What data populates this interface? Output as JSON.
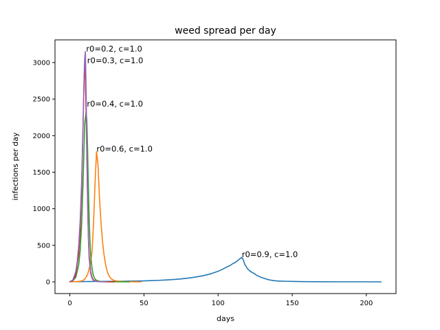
{
  "chart_data": {
    "type": "line",
    "title": "weed spread per day",
    "xlabel": "days",
    "ylabel": "infections per day",
    "xlim": [
      -10,
      220
    ],
    "ylim": [
      -160,
      3310
    ],
    "x_ticks": [
      0,
      50,
      100,
      150,
      200
    ],
    "y_ticks": [
      0,
      500,
      1000,
      1500,
      2000,
      2500,
      3000
    ],
    "grid": false,
    "legend": "none",
    "series": [
      {
        "color": "#1f77b4",
        "label": "r0=0.9, c=1.0",
        "label_anchor": [
          116,
          340
        ],
        "x": [
          0,
          5,
          10,
          15,
          20,
          25,
          30,
          35,
          40,
          45,
          50,
          55,
          60,
          65,
          70,
          75,
          80,
          85,
          90,
          95,
          100,
          103,
          106,
          108,
          110,
          112,
          114,
          115,
          116,
          117,
          118,
          120,
          122,
          124,
          126,
          128,
          130,
          132,
          134,
          136,
          138,
          140,
          145,
          150,
          155,
          160,
          170,
          180,
          190,
          200,
          210
        ],
        "y": [
          2,
          3,
          4,
          5,
          6,
          7,
          8,
          9,
          10,
          11,
          13,
          17,
          21,
          26,
          32,
          40,
          52,
          66,
          85,
          110,
          145,
          172,
          205,
          222,
          250,
          270,
          305,
          320,
          335,
          300,
          240,
          175,
          140,
          118,
          90,
          70,
          55,
          42,
          30,
          22,
          16,
          12,
          8,
          6,
          4,
          3,
          2,
          1,
          1,
          1,
          0
        ]
      },
      {
        "color": "#ff7f0e",
        "label": "r0=0.6, c=1.0",
        "label_anchor": [
          18,
          1780
        ],
        "x": [
          0,
          5,
          8,
          10,
          12,
          14,
          15,
          16,
          17,
          18,
          19,
          20,
          21,
          22,
          23,
          24,
          25,
          26,
          27,
          28,
          30,
          32,
          35,
          40,
          45,
          48
        ],
        "y": [
          1,
          4,
          12,
          35,
          100,
          260,
          420,
          800,
          1350,
          1780,
          1600,
          1150,
          820,
          560,
          380,
          250,
          160,
          100,
          65,
          40,
          18,
          10,
          5,
          2,
          1,
          0
        ]
      },
      {
        "color": "#2ca02c",
        "label": "r0=0.4, c=1.0",
        "label_anchor": [
          11.5,
          2400
        ],
        "x": [
          0,
          2,
          4,
          6,
          7,
          8,
          9,
          10,
          11,
          11.5,
          12,
          12.5,
          13,
          13.5,
          14,
          15,
          16,
          17,
          18,
          20,
          22,
          25,
          30,
          35,
          40
        ],
        "y": [
          3,
          15,
          60,
          230,
          430,
          800,
          1400,
          2150,
          2330,
          2200,
          1800,
          1300,
          900,
          600,
          380,
          180,
          80,
          40,
          20,
          8,
          4,
          2,
          1,
          0,
          0
        ]
      },
      {
        "color": "#d62728",
        "label": "r0=0.3, c=1.0",
        "label_anchor": [
          11.7,
          2990
        ],
        "x": [
          0,
          2,
          4,
          6,
          7,
          8,
          9,
          9.5,
          10,
          10.5,
          11,
          11.5,
          12,
          12.5,
          13,
          14,
          15,
          16,
          18,
          20,
          25,
          30
        ],
        "y": [
          3,
          20,
          90,
          380,
          700,
          1300,
          2200,
          2650,
          2980,
          2800,
          2300,
          1700,
          1100,
          650,
          380,
          150,
          60,
          25,
          8,
          3,
          1,
          0
        ]
      },
      {
        "color": "#9467bd",
        "label": "r0=0.2, c=1.0",
        "label_anchor": [
          11,
          3150
        ],
        "x": [
          0,
          2,
          4,
          5,
          6,
          7,
          8,
          9,
          9.5,
          10,
          10.5,
          11,
          11.5,
          12,
          12.5,
          13,
          14,
          15,
          16,
          18,
          20,
          25
        ],
        "y": [
          3,
          25,
          140,
          280,
          500,
          850,
          1400,
          2200,
          2700,
          3050,
          3150,
          2600,
          1800,
          1100,
          600,
          330,
          120,
          45,
          18,
          5,
          2,
          0
        ]
      }
    ]
  }
}
